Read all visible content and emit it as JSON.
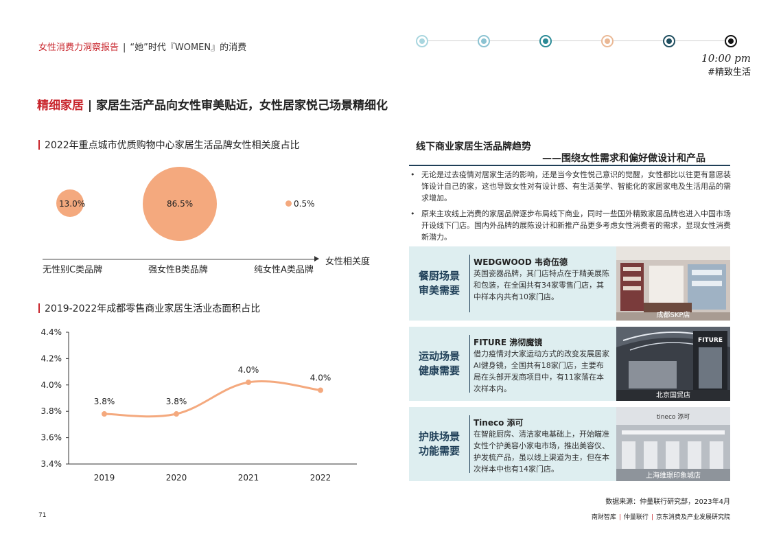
{
  "header": {
    "report_title": "女性消费力洞察报告",
    "separator": "|",
    "subtitle": "“她”时代『WOMEN』的消费",
    "time": "10:00 pm",
    "tag": "#精致生活",
    "timeline_colors": [
      "#a9d6df",
      "#8cc3d2",
      "#2a8a96",
      "#eab895",
      "#1f4e5f",
      "#111111"
    ]
  },
  "page_title": {
    "red": "精细家居",
    "separator": "|",
    "text": "家居生活产品向女性审美贴近，女性居家悦己场景精细化"
  },
  "bubble_chart_title": "2022年重点城市优质购物中心家居生活品牌女性相关度占比",
  "line_chart_title": "2019-2022年成都零售商业家居生活业态面积占比",
  "chart_data": [
    {
      "type": "scatter",
      "title": "2022年重点城市优质购物中心家居生活品牌女性相关度占比",
      "xlabel": "女性相关度",
      "categories": [
        "无性别C类品牌",
        "强女性B类品牌",
        "纯女性A类品牌"
      ],
      "values": [
        13.0,
        86.5,
        0.5
      ],
      "value_labels": [
        "13.0%",
        "86.5%",
        "0.5%"
      ],
      "color": "#f4a97e"
    },
    {
      "type": "line",
      "title": "2019-2022年成都零售商业家居生活业态面积占比",
      "x": [
        "2019",
        "2020",
        "2021",
        "2022"
      ],
      "values": [
        3.78,
        3.78,
        4.02,
        3.96
      ],
      "value_labels": [
        "3.8%",
        "3.8%",
        "4.0%",
        "4.0%"
      ],
      "ylim": [
        3.4,
        4.4
      ],
      "yticks": [
        3.4,
        3.6,
        3.8,
        4.0,
        4.2,
        4.4
      ],
      "ytick_labels": [
        "3.4%",
        "3.6%",
        "3.8%",
        "4.0%",
        "4.2%",
        "4.4%"
      ],
      "color": "#f4a97e"
    }
  ],
  "right": {
    "title1": "线下商业家居生活品牌趋势",
    "title2": "——围绕女性需求和偏好做设计和产品",
    "bullets": [
      "无论是过去疫情对居家生活的影响，还是当今女性悦己意识的觉醒，女性都比以往更有意愿装饰设计自己的家，这也导致女性对有设计感、有生活美学、智能化的家居家电及生活用品的需求增加。",
      "原来主攻线上消费的家居品牌逐步布局线下商业，同时一些国外精致家居品牌也进入中国市场开设线下门店。国内外品牌的展陈设计和新推产品更多考虑女性消费者的需求，显现女性消费新潜力。"
    ],
    "cards": [
      {
        "label1": "餐厨场景",
        "label2": "审美需要",
        "brand": "WEDGWOOD 韦奇伍德",
        "desc": "英国瓷器品牌，其门店特点在于精美展陈和包装，在全国共有34家零售门店，其中样本内共有10家门店。",
        "caption": "成都SKP店"
      },
      {
        "label1": "运动场景",
        "label2": "健康需要",
        "brand": "FITURE 沸彻魔镜",
        "desc": "借力疫情对大家运动方式的改变发展居家AI健身镜，全国共有18家门店，主要布局在头部开发商项目中，有11家落在本次样本内。",
        "caption": "北京国贸店",
        "sign": "FITURE"
      },
      {
        "label1": "护肤场景",
        "label2": "功能需要",
        "brand": "Tineco 添可",
        "desc": "在智能厨房、清洁家电基础上，开始瞄准女性个护美容小家电市场，推出美容仪、护发梳产品，虽以线上渠道为主，但在本次样本中也有14家门店。",
        "caption": "上海维璟印象城店",
        "sign": "tineco 添可"
      }
    ]
  },
  "footer": {
    "source": "数据来源：仲量联行研究部，2023年4月",
    "orgs": [
      "南财智库",
      "仲量联行",
      "京东消费及产业发展研究院"
    ],
    "separator": "|",
    "page": "71"
  }
}
